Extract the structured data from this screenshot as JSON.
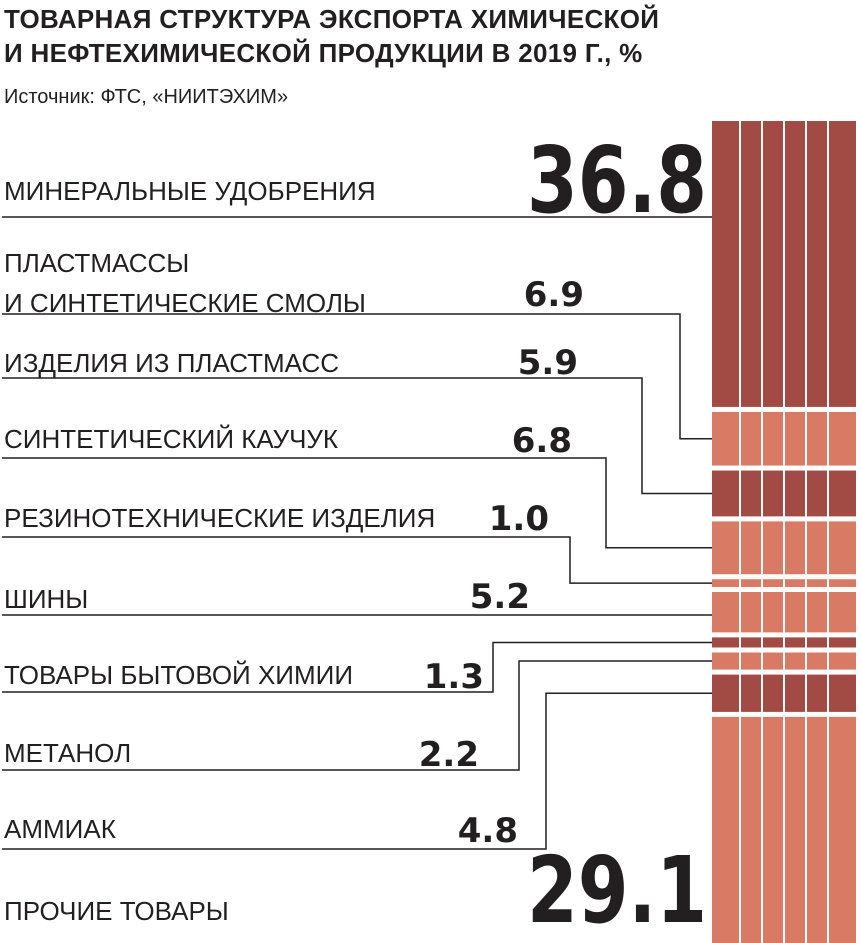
{
  "title_line1": "ТОВАРНАЯ СТРУКТУРА ЭКСПОРТА ХИМИЧЕСКОЙ",
  "title_line2": "И НЕФТЕХИМИЧЕСКОЙ ПРОДУКЦИИ В 2019 Г., %",
  "source": "Источник: ФТС, «НИИТЭХИМ»",
  "colors": {
    "dark": "#a24b45",
    "light": "#d97a64",
    "text": "#231f20"
  },
  "chart_data": {
    "type": "bar",
    "subtype": "stacked-100-percent-column",
    "title": "ТОВАРНАЯ СТРУКТУРА ЭКСПОРТА ХИМИЧЕСКОЙ И НЕФТЕХИМИЧЕСКОЙ ПРОДУКЦИИ В 2019 Г., %",
    "ylim": [
      0,
      100
    ],
    "segments": [
      {
        "label": [
          "МИНЕРАЛЬНЫЕ УДОБРЕНИЯ"
        ],
        "value": 36.8,
        "value_text": "36.8",
        "shade": "dark"
      },
      {
        "label": [
          "ПЛАСТМАССЫ",
          "И СИНТЕТИЧЕСКИЕ СМОЛЫ"
        ],
        "value": 6.9,
        "value_text": "6.9",
        "shade": "light"
      },
      {
        "label": [
          "ИЗДЕЛИЯ ИЗ ПЛАСТМАСС"
        ],
        "value": 5.9,
        "value_text": "5.9",
        "shade": "dark"
      },
      {
        "label": [
          "СИНТЕТИЧЕСКИЙ КАУЧУК"
        ],
        "value": 6.8,
        "value_text": "6.8",
        "shade": "light"
      },
      {
        "label": [
          "РЕЗИНОТЕХНИЧЕСКИЕ ИЗДЕЛИЯ"
        ],
        "value": 1.0,
        "value_text": "1.0",
        "shade": "light"
      },
      {
        "label": [
          "ШИНЫ"
        ],
        "value": 5.2,
        "value_text": "5.2",
        "shade": "light"
      },
      {
        "label": [
          "ТОВАРЫ БЫТОВОЙ ХИМИИ"
        ],
        "value": 1.3,
        "value_text": "1.3",
        "shade": "dark"
      },
      {
        "label": [
          "МЕТАНОЛ"
        ],
        "value": 2.2,
        "value_text": "2.2",
        "shade": "light"
      },
      {
        "label": [
          "АММИАК"
        ],
        "value": 4.8,
        "value_text": "4.8",
        "shade": "dark"
      },
      {
        "label": [
          "ПРОЧИЕ ТОВАРЫ"
        ],
        "value": 29.1,
        "value_text": "29.1",
        "shade": "light"
      }
    ]
  }
}
